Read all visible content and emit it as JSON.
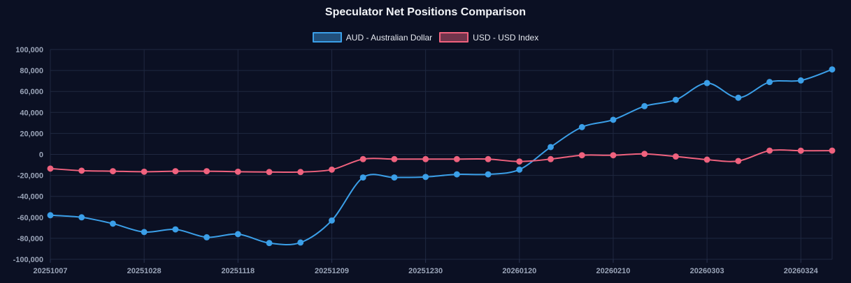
{
  "chart_data": {
    "type": "line",
    "title": "Speculator Net Positions Comparison",
    "x": [
      "20251007",
      "20251014",
      "20251021",
      "20251028",
      "20251104",
      "20251111",
      "20251118",
      "20251125",
      "20251202",
      "20251209",
      "20251216",
      "20251223",
      "20251230",
      "20260106",
      "20260113",
      "20260120",
      "20260127",
      "20260203",
      "20260210",
      "20260217",
      "20260224",
      "20260303",
      "20260310",
      "20260317",
      "20260324",
      "20260331"
    ],
    "xtick_labels": [
      "20251007",
      "20251028",
      "20251118",
      "20251209",
      "20251230",
      "20260120",
      "20260210",
      "20260303",
      "20260324"
    ],
    "ylim": [
      -100000,
      100000
    ],
    "ytick_labels": [
      "100,000",
      "80,000",
      "60,000",
      "40,000",
      "20,000",
      "0",
      "-20,000",
      "-40,000",
      "-60,000",
      "-80,000",
      "-100,000"
    ],
    "grid": true,
    "legend": "top-center",
    "series": [
      {
        "name": "AUD - Australian Dollar",
        "color": "#3b9fe8",
        "values": [
          -58000,
          -60000,
          -66000,
          -74000,
          -71500,
          -79000,
          -76000,
          -84500,
          -84000,
          -63000,
          -22000,
          -22000,
          -21500,
          -19000,
          -19000,
          -14500,
          7000,
          26000,
          33000,
          46000,
          52000,
          68000,
          54000,
          69000,
          70500,
          81000
        ]
      },
      {
        "name": "USD - USD Index",
        "color": "#f0627e",
        "values": [
          -13500,
          -15500,
          -16000,
          -16500,
          -16000,
          -16000,
          -16500,
          -16800,
          -16800,
          -14500,
          -4500,
          -4500,
          -4500,
          -4500,
          -4500,
          -6800,
          -4500,
          -800,
          -800,
          500,
          -2000,
          -5000,
          -6300,
          3600,
          3500,
          3600
        ]
      }
    ]
  }
}
